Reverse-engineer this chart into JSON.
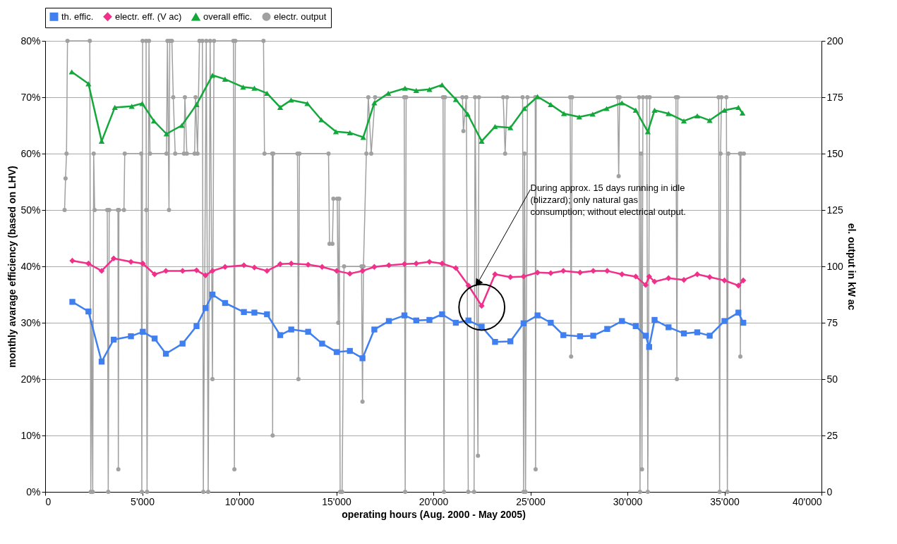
{
  "chart_data": {
    "type": "line",
    "xlabel": "operating hours (Aug. 2000 - May 2005)",
    "ylabel": "monthly avarage efficiency (based on LHV)",
    "y2label": "el. output in kW ac",
    "xlim": [
      0,
      40000
    ],
    "xticks": [
      0,
      {
        "value": 5000,
        "label": "5'000"
      },
      {
        "value": 10000,
        "label": "10'000"
      },
      {
        "value": 15000,
        "label": "15'000"
      },
      {
        "value": 20000,
        "label": "20'000"
      },
      {
        "value": 25000,
        "label": "25'000"
      },
      {
        "value": 30000,
        "label": "30'000"
      },
      {
        "value": 35000,
        "label": "35'000"
      },
      {
        "value": 40000,
        "label": "40'000"
      }
    ],
    "ylim": [
      0,
      80
    ],
    "yticks": [
      {
        "value": 0,
        "label": "0%"
      },
      {
        "value": 10,
        "label": "10%"
      },
      {
        "value": 20,
        "label": "20%"
      },
      {
        "value": 30,
        "label": "30%"
      },
      {
        "value": 40,
        "label": "40%"
      },
      {
        "value": 50,
        "label": "50%"
      },
      {
        "value": 60,
        "label": "60%"
      },
      {
        "value": 70,
        "label": "70%"
      },
      {
        "value": 80,
        "label": "80%"
      }
    ],
    "y2lim": [
      0,
      200
    ],
    "y2ticks": [
      0,
      25,
      50,
      75,
      100,
      125,
      150,
      175,
      200
    ],
    "grid": "y",
    "legend": "top",
    "line_style": "solid",
    "annotations": [
      {
        "text": "During approx. 15 days running in idle (blizzard); only natural gas consumption; without electrical output.",
        "x": 22280,
        "y": 37
      }
    ],
    "series": [
      {
        "name": "th. effic.",
        "color": "#3f7fef",
        "marker": "square",
        "x": [
          1400,
          2230,
          2910,
          3530,
          4420,
          5030,
          5640,
          6220,
          7080,
          7800,
          8260,
          8620,
          9270,
          10240,
          10780,
          11430,
          12110,
          12680,
          13550,
          14270,
          15020,
          15700,
          16350,
          16960,
          17710,
          18510,
          19120,
          19800,
          20450,
          21160,
          21810,
          22490,
          23180,
          23970,
          24650,
          25370,
          26050,
          26700,
          27560,
          28240,
          28960,
          29720,
          30430,
          30940,
          31120,
          31400,
          32120,
          32910,
          33600,
          34240,
          35000,
          35720,
          35970
        ],
        "values": [
          33.7,
          32.0,
          23.1,
          27.0,
          27.6,
          28.4,
          27.2,
          24.5,
          26.3,
          29.4,
          32.6,
          35.0,
          33.5,
          31.9,
          31.8,
          31.5,
          27.8,
          28.8,
          28.4,
          26.3,
          24.8,
          25.0,
          23.7,
          28.8,
          30.3,
          31.3,
          30.4,
          30.5,
          31.5,
          30.0,
          30.4,
          29.3,
          26.6,
          26.7,
          29.9,
          31.3,
          30.0,
          27.8,
          27.6,
          27.7,
          28.9,
          30.3,
          29.4,
          27.7,
          25.7,
          30.5,
          29.2,
          28.1,
          28.3,
          27.7,
          30.3,
          31.8,
          30.0
        ]
      },
      {
        "name": "electr. eff. (V ac)",
        "color": "#f0308a",
        "marker": "diamond",
        "x": [
          1400,
          2230,
          2910,
          3530,
          4420,
          5030,
          5640,
          6220,
          7080,
          7800,
          8260,
          8620,
          9270,
          10240,
          10780,
          11430,
          12110,
          12680,
          13550,
          14270,
          15020,
          15700,
          16350,
          16960,
          17710,
          18510,
          19120,
          19800,
          20450,
          21160,
          21810,
          22490,
          23180,
          23970,
          24650,
          25370,
          26050,
          26700,
          27560,
          28240,
          28960,
          29720,
          30430,
          30940,
          31120,
          31400,
          32120,
          32910,
          33600,
          34240,
          35000,
          35720,
          35970
        ],
        "values": [
          41.0,
          40.5,
          39.2,
          41.4,
          40.8,
          40.5,
          38.6,
          39.2,
          39.2,
          39.3,
          38.4,
          39.2,
          39.9,
          40.2,
          39.8,
          39.2,
          40.4,
          40.5,
          40.3,
          39.9,
          39.2,
          38.7,
          39.2,
          39.9,
          40.2,
          40.4,
          40.5,
          40.8,
          40.5,
          39.7,
          36.6,
          33.0,
          38.6,
          38.1,
          38.2,
          38.9,
          38.8,
          39.2,
          38.9,
          39.2,
          39.2,
          38.6,
          38.2,
          36.7,
          38.2,
          37.3,
          37.9,
          37.6,
          38.6,
          38.1,
          37.5,
          36.6,
          37.5
        ]
      },
      {
        "name": "overall effic.",
        "color": "#14a83c",
        "marker": "triangle",
        "x": [
          1370,
          2230,
          2910,
          3590,
          4460,
          5000,
          5600,
          6250,
          7040,
          7800,
          8620,
          9270,
          10200,
          10780,
          11430,
          12110,
          12670,
          13510,
          14230,
          14980,
          15700,
          16390,
          16960,
          17680,
          18540,
          19120,
          19800,
          20450,
          21160,
          21770,
          22490,
          23180,
          23970,
          24690,
          25370,
          26050,
          26730,
          27520,
          28210,
          28930,
          29720,
          30430,
          31050,
          31400,
          32120,
          32910,
          33600,
          34240,
          35000,
          35720,
          35930
        ],
        "values": [
          74.5,
          72.4,
          62.2,
          68.2,
          68.4,
          68.9,
          65.8,
          63.5,
          65.0,
          68.7,
          73.9,
          73.2,
          71.8,
          71.6,
          70.7,
          68.2,
          69.5,
          68.9,
          66.0,
          63.9,
          63.7,
          62.9,
          69.0,
          70.7,
          71.6,
          71.2,
          71.4,
          72.2,
          69.6,
          67.0,
          62.2,
          64.8,
          64.6,
          68.0,
          70.1,
          68.7,
          67.1,
          66.5,
          67.0,
          68.0,
          69.0,
          67.7,
          63.9,
          67.7,
          67.1,
          65.8,
          66.7,
          65.9,
          67.7,
          68.2,
          67.2
        ]
      },
      {
        "name": "electr. output",
        "color": "#a0a0a0",
        "marker": "circle",
        "axis": "y2",
        "x": [
          1000,
          1050,
          1100,
          1150,
          2300,
          2350,
          2400,
          2450,
          2500,
          2550,
          3200,
          3250,
          3300,
          3750,
          3770,
          3800,
          4060,
          4100,
          4950,
          4980,
          5020,
          5200,
          5210,
          5250,
          5350,
          5400,
          6250,
          6300,
          6380,
          6420,
          6530,
          6600,
          6700,
          7150,
          7200,
          7300,
          7700,
          7750,
          7850,
          7950,
          8100,
          8150,
          8300,
          8400,
          8500,
          8620,
          8700,
          9700,
          9750,
          9800,
          11250,
          11300,
          11700,
          11720,
          11750,
          13000,
          13050,
          13100,
          14600,
          14650,
          14800,
          14850,
          15050,
          15100,
          15150,
          15200,
          15300,
          15400,
          16300,
          16350,
          16400,
          16550,
          16650,
          16800,
          17000,
          18500,
          18550,
          18600,
          20500,
          20550,
          20600,
          21500,
          21550,
          21700,
          21800,
          22100,
          22150,
          22300,
          22350,
          23600,
          23700,
          23800,
          24600,
          24650,
          24700,
          24750,
          24850,
          25250,
          25270,
          25300,
          27050,
          27100,
          27150,
          29500,
          29550,
          29600,
          30600,
          30650,
          30700,
          30750,
          30800,
          31000,
          31050,
          31150,
          32500,
          32550,
          32600,
          34700,
          34750,
          34800,
          34850,
          35100,
          35150,
          35200,
          35800,
          35820,
          35850,
          36000
        ],
        "values": [
          125,
          139,
          150,
          200,
          200,
          0,
          75,
          0,
          150,
          125,
          125,
          0,
          125,
          125,
          10,
          125,
          125,
          150,
          150,
          0,
          200,
          200,
          125,
          0,
          200,
          150,
          150,
          200,
          125,
          200,
          200,
          175,
          150,
          150,
          175,
          150,
          150,
          175,
          150,
          200,
          200,
          0,
          200,
          0,
          200,
          50,
          200,
          200,
          10,
          200,
          200,
          150,
          150,
          25,
          150,
          150,
          50,
          150,
          150,
          110,
          110,
          130,
          130,
          75,
          130,
          0,
          0,
          100,
          100,
          40,
          100,
          150,
          175,
          150,
          175,
          175,
          0,
          175,
          175,
          0,
          175,
          175,
          160,
          175,
          0,
          0,
          175,
          16,
          175,
          175,
          150,
          175,
          175,
          0,
          150,
          0,
          175,
          175,
          10,
          175,
          175,
          60,
          175,
          175,
          140,
          175,
          175,
          0,
          150,
          10,
          175,
          175,
          0,
          175,
          175,
          50,
          175,
          175,
          0,
          150,
          175,
          175,
          0,
          150,
          150,
          60,
          150,
          150
        ]
      }
    ]
  }
}
